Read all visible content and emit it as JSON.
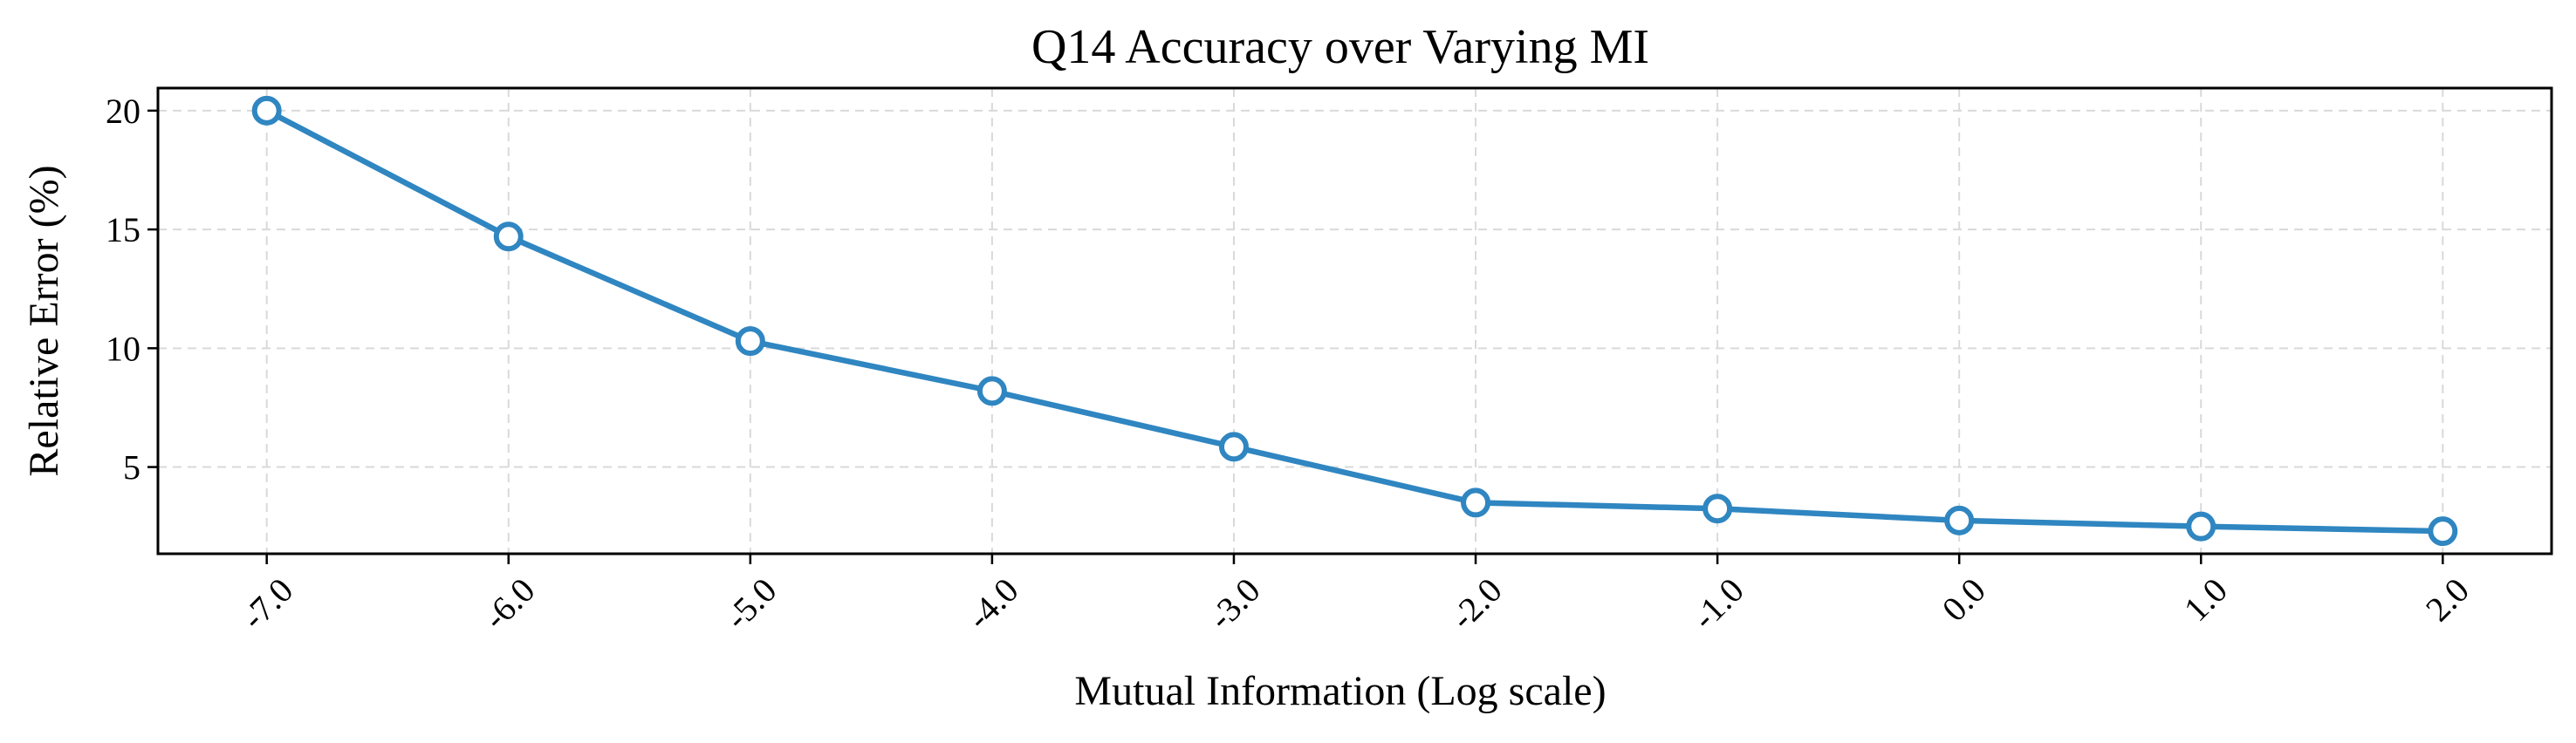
{
  "chart_data": {
    "type": "line",
    "title": "Q14 Accuracy over Varying MI",
    "xlabel": "Mutual Information (Log scale)",
    "ylabel": "Relative Error (%)",
    "x": [
      -7.0,
      -6.0,
      -5.0,
      -4.0,
      -3.0,
      -2.0,
      -1.0,
      0.0,
      1.0,
      2.0
    ],
    "x_tick_labels": [
      "-7.0",
      "-6.0",
      "-5.0",
      "-4.0",
      "-3.0",
      "-2.0",
      "-1.0",
      "0.0",
      "1.0",
      "2.0"
    ],
    "y_ticks": [
      5,
      10,
      15,
      20
    ],
    "y_tick_labels": [
      "5",
      "10",
      "15",
      "20"
    ],
    "xlim": [
      -7.45,
      2.45
    ],
    "ylim": [
      1.35,
      20.95
    ],
    "grid": true,
    "series": [
      {
        "name": "Q14",
        "values": [
          20.0,
          14.7,
          10.3,
          8.2,
          5.85,
          3.5,
          3.25,
          2.75,
          2.5,
          2.3
        ],
        "color": "#2f86c1",
        "marker_fill": "#ffffff"
      }
    ]
  }
}
